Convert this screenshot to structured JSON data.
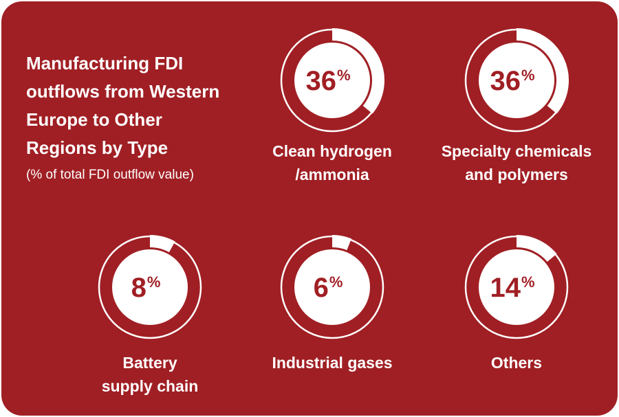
{
  "title_lines": [
    "Manufacturing FDI",
    "outflows from Western",
    "Europe to Other",
    "Regions by Type"
  ],
  "subtitle": "(% of total FDI outflow value)",
  "colors": {
    "background": "#a01f24",
    "ring": "#ffffff",
    "value_text": "#a01f24"
  },
  "chart_data": {
    "type": "gauge",
    "unit": "%",
    "items": [
      {
        "label_lines": [
          "Clean hydrogen",
          "/ammonia"
        ],
        "value": 36
      },
      {
        "label_lines": [
          "Specialty chemicals",
          "and polymers"
        ],
        "value": 36
      },
      {
        "label_lines": [
          "Battery",
          "supply chain"
        ],
        "value": 8
      },
      {
        "label_lines": [
          "Industrial gases"
        ],
        "value": 6
      },
      {
        "label_lines": [
          "Others"
        ],
        "value": 14
      }
    ]
  }
}
